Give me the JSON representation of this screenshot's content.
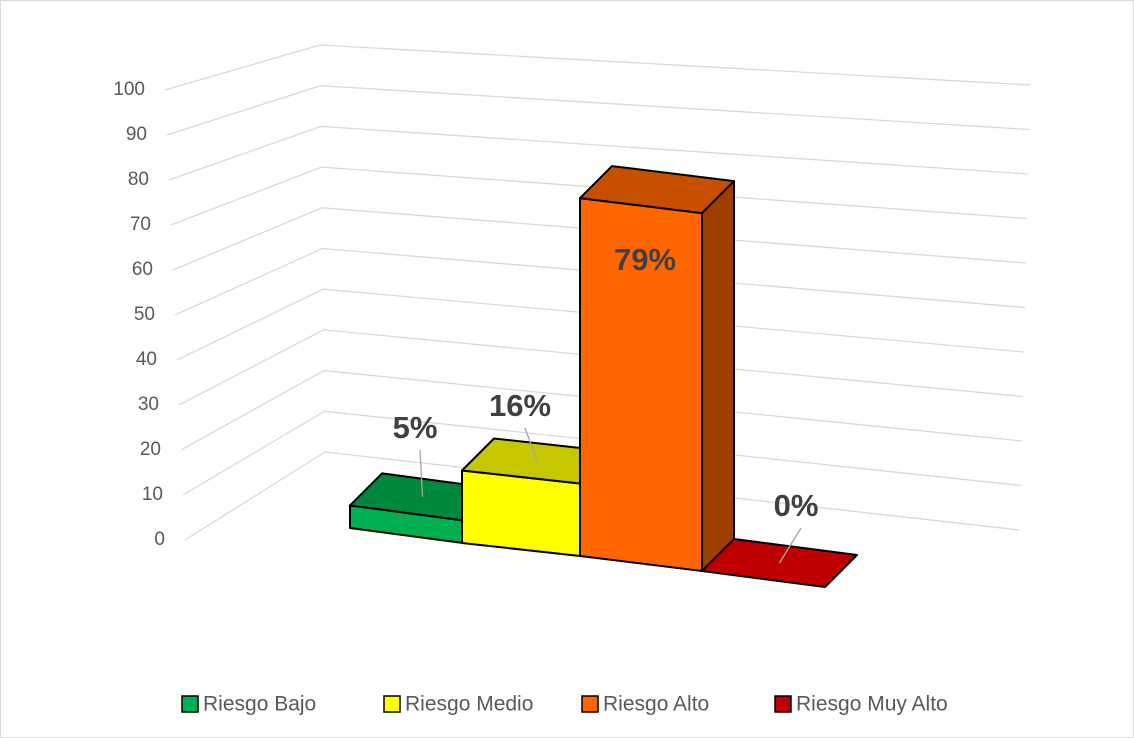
{
  "chart_data": {
    "type": "bar3d",
    "categories": [
      "Riesgo Bajo",
      "Riesgo Medio",
      "Riesgo Alto",
      "Riesgo Muy Alto"
    ],
    "values": [
      5,
      16,
      79,
      0
    ],
    "value_labels": [
      "5%",
      "16%",
      "79%",
      "0%"
    ],
    "colors": [
      "#00b050",
      "#ffff00",
      "#ff6600",
      "#c00000"
    ],
    "ylim": [
      0,
      100
    ],
    "yticks": [
      0,
      10,
      20,
      30,
      40,
      50,
      60,
      70,
      80,
      90,
      100
    ],
    "grid": true,
    "legend": "bottom"
  }
}
